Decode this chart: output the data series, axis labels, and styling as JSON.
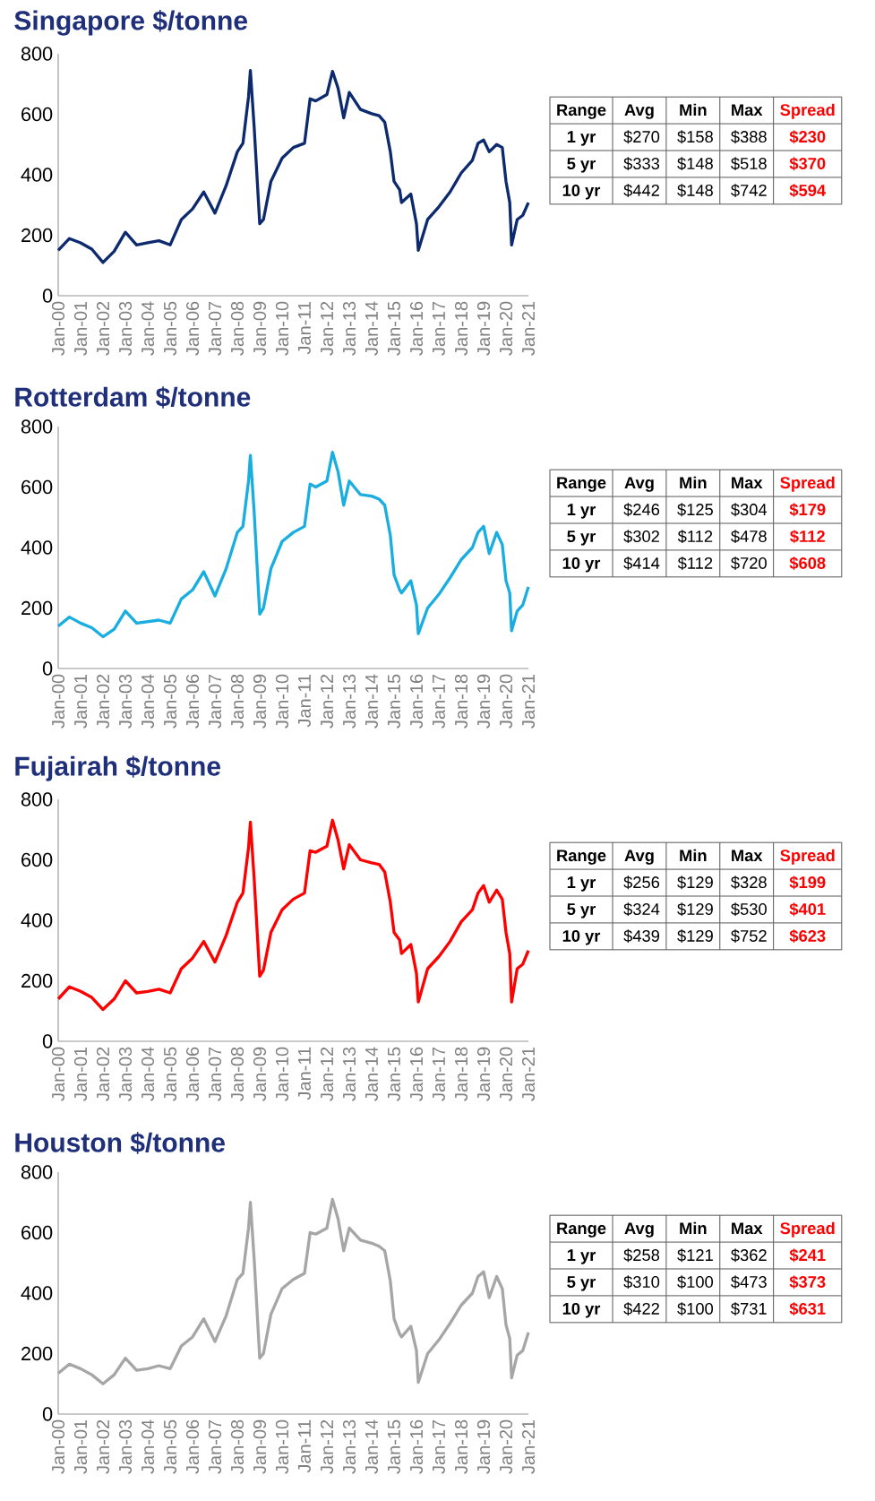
{
  "chart_data": [
    {
      "type": "line",
      "title": "Singapore $/tonne",
      "x": [
        "2000-01",
        "2000-07",
        "2001-01",
        "2001-07",
        "2002-01",
        "2002-07",
        "2003-01",
        "2003-07",
        "2004-01",
        "2004-07",
        "2005-01",
        "2005-07",
        "2006-01",
        "2006-07",
        "2007-01",
        "2007-07",
        "2008-01",
        "2008-04",
        "2008-07",
        "2008-08",
        "2008-10",
        "2009-01",
        "2009-03",
        "2009-07",
        "2010-01",
        "2010-07",
        "2011-01",
        "2011-04",
        "2011-07",
        "2012-01",
        "2012-04",
        "2012-07",
        "2012-10",
        "2013-01",
        "2013-07",
        "2014-01",
        "2014-05",
        "2014-08",
        "2014-11",
        "2015-01",
        "2015-04",
        "2015-05",
        "2015-10",
        "2016-01",
        "2016-02",
        "2016-07",
        "2017-01",
        "2017-07",
        "2018-01",
        "2018-07",
        "2018-10",
        "2019-01",
        "2019-04",
        "2019-08",
        "2019-11",
        "2020-01",
        "2020-03",
        "2020-04",
        "2020-07",
        "2020-10",
        "2021-01"
      ],
      "series": [
        {
          "color": "#0d2a6e",
          "values": [
            150,
            189,
            175,
            154,
            110,
            147,
            210,
            168,
            175,
            182,
            168,
            252,
            287,
            343,
            273,
            364,
            476,
            504,
            658,
            745,
            560,
            238,
            252,
            378,
            455,
            490,
            504,
            651,
            644,
            665,
            742,
            686,
            588,
            672,
            616,
            602,
            595,
            574,
            476,
            378,
            350,
            308,
            336,
            238,
            150,
            252,
            294,
            343,
            406,
            448,
            504,
            515,
            476,
            500,
            490,
            378,
            308,
            168,
            252,
            266,
            308
          ]
        }
      ],
      "xlim": [
        "2000-01",
        "2021-01"
      ],
      "ylim": [
        0,
        800
      ],
      "yticks": [
        0,
        200,
        400,
        600,
        800
      ],
      "xticks": [
        {
          "value": "2000-01",
          "label": "Jan-00"
        },
        {
          "value": "2001-01",
          "label": "Jan-01"
        },
        {
          "value": "2002-01",
          "label": "Jan-02"
        },
        {
          "value": "2003-01",
          "label": "Jan-03"
        },
        {
          "value": "2004-01",
          "label": "Jan-04"
        },
        {
          "value": "2005-01",
          "label": "Jan-05"
        },
        {
          "value": "2006-01",
          "label": "Jan-06"
        },
        {
          "value": "2007-01",
          "label": "Jan-07"
        },
        {
          "value": "2008-01",
          "label": "Jan-08"
        },
        {
          "value": "2009-01",
          "label": "Jan-09"
        },
        {
          "value": "2010-01",
          "label": "Jan-10"
        },
        {
          "value": "2011-01",
          "label": "Jan-11"
        },
        {
          "value": "2012-01",
          "label": "Jan-12"
        },
        {
          "value": "2013-01",
          "label": "Jan-13"
        },
        {
          "value": "2014-01",
          "label": "Jan-14"
        },
        {
          "value": "2015-01",
          "label": "Jan-15"
        },
        {
          "value": "2016-01",
          "label": "Jan-16"
        },
        {
          "value": "2017-01",
          "label": "Jan-17"
        },
        {
          "value": "2018-01",
          "label": "Jan-18"
        },
        {
          "value": "2019-01",
          "label": "Jan-19"
        },
        {
          "value": "2020-01",
          "label": "Jan-20"
        },
        {
          "value": "2021-01",
          "label": "Jan-21"
        }
      ],
      "annotations": [
        "Range",
        "Avg",
        "Min",
        "Max",
        "Spread",
        "1 yr",
        "$270",
        "$158",
        "$388",
        "$230",
        "5 yr",
        "$333",
        "$148",
        "$518",
        "$370",
        "10 yr",
        "$442",
        "$148",
        "$742",
        "$594"
      ]
    },
    {
      "type": "line",
      "title": "Rotterdam $/tonne",
      "x": [
        "2000-01",
        "2000-07",
        "2001-01",
        "2001-07",
        "2002-01",
        "2002-07",
        "2003-01",
        "2003-07",
        "2004-01",
        "2004-07",
        "2005-01",
        "2005-07",
        "2006-01",
        "2006-07",
        "2007-01",
        "2007-07",
        "2008-01",
        "2008-04",
        "2008-07",
        "2008-08",
        "2008-10",
        "2009-01",
        "2009-03",
        "2009-07",
        "2010-01",
        "2010-07",
        "2011-01",
        "2011-04",
        "2011-07",
        "2012-01",
        "2012-04",
        "2012-07",
        "2012-10",
        "2013-01",
        "2013-07",
        "2014-01",
        "2014-05",
        "2014-08",
        "2014-11",
        "2015-01",
        "2015-04",
        "2015-05",
        "2015-10",
        "2016-01",
        "2016-02",
        "2016-07",
        "2017-01",
        "2017-07",
        "2018-01",
        "2018-07",
        "2018-10",
        "2019-01",
        "2019-04",
        "2019-08",
        "2019-11",
        "2020-01",
        "2020-03",
        "2020-04",
        "2020-07",
        "2020-10",
        "2021-01"
      ],
      "series": [
        {
          "color": "#1aaee0",
          "values": [
            140,
            170,
            150,
            135,
            105,
            130,
            190,
            150,
            155,
            160,
            150,
            230,
            260,
            320,
            240,
            330,
            450,
            470,
            620,
            705,
            520,
            180,
            200,
            330,
            420,
            450,
            470,
            610,
            600,
            620,
            715,
            650,
            540,
            620,
            575,
            570,
            560,
            540,
            440,
            310,
            260,
            250,
            290,
            210,
            115,
            200,
            245,
            300,
            360,
            400,
            450,
            470,
            380,
            450,
            410,
            290,
            250,
            125,
            190,
            210,
            270
          ]
        }
      ],
      "xlim": [
        "2000-01",
        "2021-01"
      ],
      "ylim": [
        0,
        800
      ],
      "yticks": [
        0,
        200,
        400,
        600,
        800
      ],
      "xticks": [
        {
          "value": "2000-01",
          "label": "Jan-00"
        },
        {
          "value": "2001-01",
          "label": "Jan-01"
        },
        {
          "value": "2002-01",
          "label": "Jan-02"
        },
        {
          "value": "2003-01",
          "label": "Jan-03"
        },
        {
          "value": "2004-01",
          "label": "Jan-04"
        },
        {
          "value": "2005-01",
          "label": "Jan-05"
        },
        {
          "value": "2006-01",
          "label": "Jan-06"
        },
        {
          "value": "2007-01",
          "label": "Jan-07"
        },
        {
          "value": "2008-01",
          "label": "Jan-08"
        },
        {
          "value": "2009-01",
          "label": "Jan-09"
        },
        {
          "value": "2010-01",
          "label": "Jan-10"
        },
        {
          "value": "2011-01",
          "label": "Jan-11"
        },
        {
          "value": "2012-01",
          "label": "Jan-12"
        },
        {
          "value": "2013-01",
          "label": "Jan-13"
        },
        {
          "value": "2014-01",
          "label": "Jan-14"
        },
        {
          "value": "2015-01",
          "label": "Jan-15"
        },
        {
          "value": "2016-01",
          "label": "Jan-16"
        },
        {
          "value": "2017-01",
          "label": "Jan-17"
        },
        {
          "value": "2018-01",
          "label": "Jan-18"
        },
        {
          "value": "2019-01",
          "label": "Jan-19"
        },
        {
          "value": "2020-01",
          "label": "Jan-20"
        },
        {
          "value": "2021-01",
          "label": "Jan-21"
        }
      ],
      "annotations": [
        "Range",
        "Avg",
        "Min",
        "Max",
        "Spread",
        "1 yr",
        "$246",
        "$125",
        "$304",
        "$179",
        "5 yr",
        "$302",
        "$112",
        "$478",
        "$112",
        "10 yr",
        "$414",
        "$112",
        "$720",
        "$608"
      ]
    },
    {
      "type": "line",
      "title": "Fujairah $/tonne",
      "x": [
        "2000-01",
        "2000-07",
        "2001-01",
        "2001-07",
        "2002-01",
        "2002-07",
        "2003-01",
        "2003-07",
        "2004-01",
        "2004-07",
        "2005-01",
        "2005-07",
        "2006-01",
        "2006-07",
        "2007-01",
        "2007-07",
        "2008-01",
        "2008-04",
        "2008-07",
        "2008-08",
        "2008-10",
        "2009-01",
        "2009-03",
        "2009-07",
        "2010-01",
        "2010-07",
        "2011-01",
        "2011-04",
        "2011-07",
        "2012-01",
        "2012-04",
        "2012-07",
        "2012-10",
        "2013-01",
        "2013-07",
        "2014-01",
        "2014-05",
        "2014-08",
        "2014-11",
        "2015-01",
        "2015-04",
        "2015-05",
        "2015-10",
        "2016-01",
        "2016-02",
        "2016-07",
        "2017-01",
        "2017-07",
        "2018-01",
        "2018-07",
        "2018-10",
        "2019-01",
        "2019-04",
        "2019-08",
        "2019-11",
        "2020-01",
        "2020-03",
        "2020-04",
        "2020-07",
        "2020-10",
        "2021-01"
      ],
      "series": [
        {
          "color": "#ff0000",
          "values": [
            140,
            180,
            165,
            145,
            105,
            140,
            200,
            160,
            165,
            172,
            160,
            240,
            275,
            330,
            262,
            350,
            460,
            490,
            640,
            725,
            540,
            215,
            235,
            360,
            435,
            470,
            490,
            630,
            625,
            645,
            731,
            665,
            570,
            650,
            600,
            590,
            585,
            560,
            460,
            360,
            335,
            290,
            320,
            225,
            130,
            240,
            280,
            330,
            395,
            435,
            490,
            515,
            460,
            500,
            470,
            360,
            290,
            130,
            240,
            255,
            300
          ]
        }
      ],
      "xlim": [
        "2000-01",
        "2021-01"
      ],
      "ylim": [
        0,
        800
      ],
      "yticks": [
        0,
        200,
        400,
        600,
        800
      ],
      "xticks": [
        {
          "value": "2000-01",
          "label": "Jan-00"
        },
        {
          "value": "2001-01",
          "label": "Jan-01"
        },
        {
          "value": "2002-01",
          "label": "Jan-02"
        },
        {
          "value": "2003-01",
          "label": "Jan-03"
        },
        {
          "value": "2004-01",
          "label": "Jan-04"
        },
        {
          "value": "2005-01",
          "label": "Jan-05"
        },
        {
          "value": "2006-01",
          "label": "Jan-06"
        },
        {
          "value": "2007-01",
          "label": "Jan-07"
        },
        {
          "value": "2008-01",
          "label": "Jan-08"
        },
        {
          "value": "2009-01",
          "label": "Jan-09"
        },
        {
          "value": "2010-01",
          "label": "Jan-10"
        },
        {
          "value": "2011-01",
          "label": "Jan-11"
        },
        {
          "value": "2012-01",
          "label": "Jan-12"
        },
        {
          "value": "2013-01",
          "label": "Jan-13"
        },
        {
          "value": "2014-01",
          "label": "Jan-14"
        },
        {
          "value": "2015-01",
          "label": "Jan-15"
        },
        {
          "value": "2016-01",
          "label": "Jan-16"
        },
        {
          "value": "2017-01",
          "label": "Jan-17"
        },
        {
          "value": "2018-01",
          "label": "Jan-18"
        },
        {
          "value": "2019-01",
          "label": "Jan-19"
        },
        {
          "value": "2020-01",
          "label": "Jan-20"
        },
        {
          "value": "2021-01",
          "label": "Jan-21"
        }
      ],
      "annotations": [
        "Range",
        "Avg",
        "Min",
        "Max",
        "Spread",
        "1 yr",
        "$256",
        "$129",
        "$328",
        "$199",
        "5 yr",
        "$324",
        "$129",
        "$530",
        "$401",
        "10 yr",
        "$439",
        "$129",
        "$752",
        "$623"
      ]
    },
    {
      "type": "line",
      "title": "Houston $/tonne",
      "x": [
        "2000-01",
        "2000-07",
        "2001-01",
        "2001-07",
        "2002-01",
        "2002-07",
        "2003-01",
        "2003-07",
        "2004-01",
        "2004-07",
        "2005-01",
        "2005-07",
        "2006-01",
        "2006-07",
        "2007-01",
        "2007-07",
        "2008-01",
        "2008-04",
        "2008-07",
        "2008-08",
        "2008-10",
        "2009-01",
        "2009-03",
        "2009-07",
        "2010-01",
        "2010-07",
        "2011-01",
        "2011-04",
        "2011-07",
        "2012-01",
        "2012-04",
        "2012-07",
        "2012-10",
        "2013-01",
        "2013-07",
        "2014-01",
        "2014-05",
        "2014-08",
        "2014-11",
        "2015-01",
        "2015-04",
        "2015-05",
        "2015-10",
        "2016-01",
        "2016-02",
        "2016-07",
        "2017-01",
        "2017-07",
        "2018-01",
        "2018-07",
        "2018-10",
        "2019-01",
        "2019-04",
        "2019-08",
        "2019-11",
        "2020-01",
        "2020-03",
        "2020-04",
        "2020-07",
        "2020-10",
        "2021-01"
      ],
      "series": [
        {
          "color": "#a6a6a6",
          "values": [
            135,
            165,
            150,
            130,
            100,
            130,
            185,
            145,
            150,
            160,
            150,
            225,
            255,
            315,
            240,
            325,
            445,
            465,
            615,
            700,
            515,
            185,
            200,
            330,
            415,
            445,
            465,
            600,
            595,
            615,
            710,
            645,
            540,
            615,
            575,
            565,
            555,
            540,
            440,
            315,
            265,
            255,
            290,
            210,
            105,
            200,
            245,
            300,
            360,
            400,
            455,
            470,
            385,
            455,
            415,
            295,
            250,
            120,
            195,
            210,
            270
          ]
        }
      ],
      "xlim": [
        "2000-01",
        "2021-01"
      ],
      "ylim": [
        0,
        800
      ],
      "yticks": [
        0,
        200,
        400,
        600,
        800
      ],
      "xticks": [
        {
          "value": "2000-01",
          "label": "Jan-00"
        },
        {
          "value": "2001-01",
          "label": "Jan-01"
        },
        {
          "value": "2002-01",
          "label": "Jan-02"
        },
        {
          "value": "2003-01",
          "label": "Jan-03"
        },
        {
          "value": "2004-01",
          "label": "Jan-04"
        },
        {
          "value": "2005-01",
          "label": "Jan-05"
        },
        {
          "value": "2006-01",
          "label": "Jan-06"
        },
        {
          "value": "2007-01",
          "label": "Jan-07"
        },
        {
          "value": "2008-01",
          "label": "Jan-08"
        },
        {
          "value": "2009-01",
          "label": "Jan-09"
        },
        {
          "value": "2010-01",
          "label": "Jan-10"
        },
        {
          "value": "2011-01",
          "label": "Jan-11"
        },
        {
          "value": "2012-01",
          "label": "Jan-12"
        },
        {
          "value": "2013-01",
          "label": "Jan-13"
        },
        {
          "value": "2014-01",
          "label": "Jan-14"
        },
        {
          "value": "2015-01",
          "label": "Jan-15"
        },
        {
          "value": "2016-01",
          "label": "Jan-16"
        },
        {
          "value": "2017-01",
          "label": "Jan-17"
        },
        {
          "value": "2018-01",
          "label": "Jan-18"
        },
        {
          "value": "2019-01",
          "label": "Jan-19"
        },
        {
          "value": "2020-01",
          "label": "Jan-20"
        },
        {
          "value": "2021-01",
          "label": "Jan-21"
        }
      ],
      "annotations": [
        "Range",
        "Avg",
        "Min",
        "Max",
        "Spread",
        "1 yr",
        "$258",
        "$121",
        "$362",
        "$241",
        "5 yr",
        "$310",
        "$100",
        "$473",
        "$373",
        "10 yr",
        "$422",
        "$100",
        "$731",
        "$631"
      ]
    }
  ]
}
